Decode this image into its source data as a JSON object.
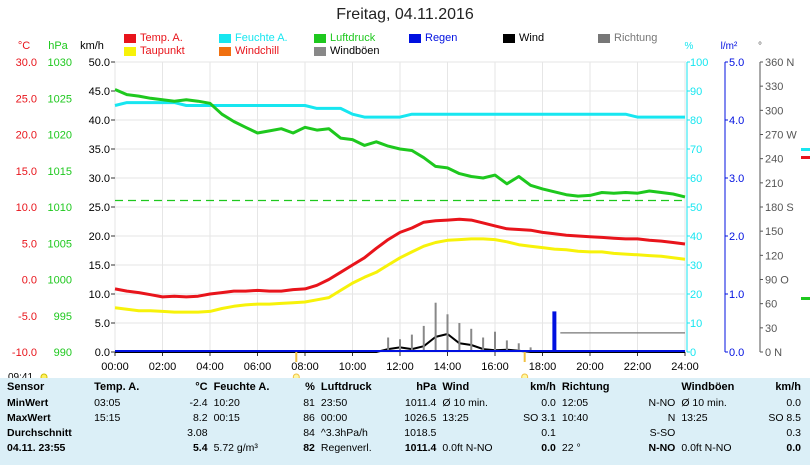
{
  "title": "Freitag, 04.11.2016",
  "time_start": "09:41",
  "legend": [
    {
      "label": "Temp. A.",
      "color": "#e8141b",
      "text_color": "#e8141b"
    },
    {
      "label": "Feuchte A.",
      "color": "#17e6f0",
      "text_color": "#17e6f0"
    },
    {
      "label": "Luftdruck",
      "color": "#1ec81e",
      "text_color": "#1ec81e"
    },
    {
      "label": "Regen",
      "color": "#0010e0",
      "text_color": "#0010e0"
    },
    {
      "label": "Wind",
      "color": "#000000",
      "text_color": "#000000"
    },
    {
      "label": "Richtung",
      "color": "#777777",
      "text_color": "#777777"
    },
    {
      "label": "Taupunkt",
      "color": "#f7f20a",
      "text_color": "#e8141b"
    },
    {
      "label": "Windchill",
      "color": "#f07010",
      "text_color": "#e8141b"
    },
    {
      "label": "Windböen",
      "color": "#888888",
      "text_color": "#000000"
    }
  ],
  "chart_data": {
    "type": "line",
    "x": [
      "00:00",
      "00:30",
      "01:00",
      "01:30",
      "02:00",
      "02:30",
      "03:00",
      "03:30",
      "04:00",
      "04:30",
      "05:00",
      "05:30",
      "06:00",
      "06:30",
      "07:00",
      "07:30",
      "08:00",
      "08:30",
      "09:00",
      "09:30",
      "10:00",
      "10:30",
      "11:00",
      "11:30",
      "12:00",
      "12:30",
      "13:00",
      "13:30",
      "14:00",
      "14:30",
      "15:00",
      "15:30",
      "16:00",
      "16:30",
      "17:00",
      "17:30",
      "18:00",
      "18:30",
      "19:00",
      "19:30",
      "20:00",
      "20:30",
      "21:00",
      "21:30",
      "22:00",
      "22:30",
      "23:00",
      "23:30",
      "24:00"
    ],
    "x_ticks": [
      "00:00",
      "02:00",
      "04:00",
      "06:00",
      "08:00",
      "10:00",
      "12:00",
      "14:00",
      "16:00",
      "18:00",
      "20:00",
      "22:00",
      "24:00"
    ],
    "axes": {
      "temp": {
        "label": "°C",
        "ticks": [
          "30.0",
          "25.0",
          "20.0",
          "15.0",
          "10.0",
          "5.0",
          "0.0",
          "-5.0",
          "-10.0"
        ],
        "range": [
          -10,
          30
        ],
        "color": "#e8141b"
      },
      "pressure": {
        "label": "hPa",
        "ticks": [
          "1030",
          "1025",
          "1020",
          "1015",
          "1010",
          "1005",
          "1000",
          "995",
          "990"
        ],
        "range": [
          990,
          1030
        ],
        "color": "#1ec81e"
      },
      "wind": {
        "label": "km/h",
        "ticks": [
          "50.0",
          "45.0",
          "40.0",
          "35.0",
          "30.0",
          "25.0",
          "20.0",
          "15.0",
          "10.0",
          "5.0",
          "0.0"
        ],
        "range": [
          0,
          50
        ],
        "color": "#000000"
      },
      "humidity": {
        "label": "%",
        "ticks": [
          "100",
          "90",
          "80",
          "70",
          "60",
          "50",
          "40",
          "30",
          "20",
          "10",
          "0"
        ],
        "range": [
          0,
          100
        ],
        "color": "#17e6f0"
      },
      "rain": {
        "label": "l/m²",
        "ticks": [
          "5.0",
          "4.0",
          "3.0",
          "2.0",
          "1.0",
          "0.0"
        ],
        "range": [
          0,
          5
        ],
        "color": "#0010e0"
      },
      "direction": {
        "label": "°",
        "ticks": [
          "360 N",
          "330",
          "300",
          "270 W",
          "240",
          "210",
          "180 S",
          "150",
          "120",
          "90 O",
          "60",
          "30",
          "0 N"
        ],
        "range": [
          0,
          360
        ],
        "color": "#555555"
      }
    },
    "series": [
      {
        "name": "Temp. A.",
        "axis": "temp",
        "color": "#e8141b",
        "values": [
          -1.3,
          -1.6,
          -1.8,
          -2.1,
          -2.4,
          -2.3,
          -2.4,
          -2.3,
          -2.0,
          -1.8,
          -1.6,
          -1.6,
          -1.5,
          -1.6,
          -1.6,
          -1.4,
          -1.3,
          -0.8,
          0.0,
          1.0,
          2.0,
          3.0,
          4.3,
          5.5,
          6.5,
          7.1,
          7.9,
          8.1,
          8.2,
          8.3,
          8.2,
          7.8,
          7.4,
          7.0,
          6.9,
          6.8,
          6.5,
          6.3,
          6.1,
          6.0,
          5.9,
          5.8,
          5.7,
          5.6,
          5.6,
          5.4,
          5.3,
          5.1,
          4.9
        ]
      },
      {
        "name": "Taupunkt",
        "axis": "temp",
        "color": "#f7f20a",
        "values": [
          -3.9,
          -4.1,
          -4.3,
          -4.3,
          -4.4,
          -4.5,
          -4.5,
          -4.5,
          -4.4,
          -4.0,
          -3.7,
          -3.5,
          -3.4,
          -3.4,
          -3.3,
          -3.2,
          -3.1,
          -2.8,
          -2.5,
          -1.5,
          -0.5,
          0.3,
          1.0,
          2.0,
          3.0,
          3.8,
          4.6,
          5.1,
          5.4,
          5.5,
          5.6,
          5.6,
          5.5,
          5.2,
          4.8,
          4.6,
          4.4,
          4.2,
          4.1,
          3.9,
          3.8,
          3.8,
          3.6,
          3.5,
          3.4,
          3.3,
          3.2,
          3.0,
          2.8
        ]
      },
      {
        "name": "Feuchte A.",
        "axis": "humidity",
        "color": "#17e6f0",
        "values": [
          85,
          86,
          86,
          86,
          86,
          86,
          85,
          85,
          85,
          85,
          85,
          85,
          85,
          85,
          85,
          85,
          85,
          84,
          84,
          84,
          82,
          81,
          81,
          81,
          81,
          82,
          82,
          82,
          82,
          82,
          82,
          82,
          82,
          82,
          82,
          82,
          82,
          82,
          82,
          82,
          82,
          82,
          82,
          82,
          81,
          81,
          81,
          81,
          81
        ]
      },
      {
        "name": "Luftdruck",
        "axis": "pressure",
        "color": "#1ec81e",
        "values": [
          1026.2,
          1025.5,
          1025.3,
          1025.0,
          1024.8,
          1024.6,
          1024.8,
          1024.6,
          1024.3,
          1022.8,
          1021.8,
          1021.0,
          1020.2,
          1020.5,
          1020.8,
          1020.2,
          1021.0,
          1020.6,
          1020.8,
          1019.5,
          1019.3,
          1018.5,
          1019.0,
          1018.4,
          1018.0,
          1017.8,
          1016.8,
          1015.6,
          1015.4,
          1014.6,
          1014.2,
          1014.0,
          1014.4,
          1013.2,
          1014.2,
          1013.0,
          1012.5,
          1012.1,
          1011.7,
          1011.5,
          1011.6,
          1012.0,
          1011.9,
          1012.0,
          1011.9,
          1012.2,
          1012.0,
          1011.8,
          1011.4
        ]
      },
      {
        "name": "Wind",
        "axis": "wind",
        "color": "#000000",
        "values": [
          0,
          0,
          0,
          0,
          0,
          0,
          0,
          0,
          0,
          0,
          0,
          0,
          0,
          0,
          0,
          0,
          0,
          0,
          0,
          0,
          0,
          0,
          0,
          0.5,
          0.8,
          0.5,
          1.0,
          2.6,
          3.1,
          1.5,
          1.2,
          0.5,
          0.3,
          0.4,
          0.2,
          0,
          0,
          0,
          0,
          0,
          0,
          0,
          0,
          0,
          0,
          0,
          0,
          0,
          0
        ]
      },
      {
        "name": "Windböen",
        "axis": "wind",
        "color": "#888888",
        "values": [
          0,
          0,
          0,
          0,
          0,
          0,
          0,
          0,
          0,
          0,
          0,
          0,
          0,
          0,
          0,
          0,
          0,
          0,
          0,
          0,
          0,
          0,
          0,
          2.5,
          2.2,
          3.0,
          4.5,
          8.5,
          6.5,
          5.0,
          4.0,
          2.5,
          3.5,
          2.0,
          1.5,
          0.8,
          0,
          0,
          0,
          0,
          0,
          0,
          0,
          0,
          0,
          0,
          0,
          0,
          0
        ]
      },
      {
        "name": "Regen",
        "axis": "rain",
        "color": "#0010e0",
        "values": [
          0,
          0,
          0,
          0,
          0,
          0,
          0,
          0,
          0,
          0,
          0,
          0,
          0,
          0,
          0,
          0,
          0,
          0,
          0,
          0,
          0,
          0,
          0,
          0,
          0,
          0,
          0,
          0,
          0,
          0,
          0,
          0,
          0,
          0,
          0,
          0,
          0,
          0.7,
          0,
          0,
          0,
          0,
          0,
          0,
          0,
          0,
          0,
          0,
          0
        ]
      }
    ],
    "reference_lines": [
      {
        "axis": "temp",
        "value": 10.9,
        "color": "#1ec81e",
        "style": "dashed"
      },
      {
        "axis": "wind",
        "value": 3.3,
        "color": "#777777",
        "style": "solid",
        "from": "18:45",
        "to": "24:00"
      }
    ]
  },
  "summary": {
    "headers": [
      "Sensor",
      "Temp. A.",
      "°C",
      "Feuchte A.",
      "%",
      "Luftdruck",
      "hPa",
      "Wind",
      "km/h",
      "Richtung",
      "",
      "Windböen",
      "km/h"
    ],
    "rows": [
      {
        "label": "MinWert",
        "cells": [
          "03:05",
          "-2.4",
          "10:20",
          "81",
          "23:50",
          "1011.4",
          "Ø 10 min.",
          "0.0",
          "12:05",
          "N-NO",
          "Ø 10 min.",
          "0.0"
        ]
      },
      {
        "label": "MaxWert",
        "cells": [
          "15:15",
          "8.2",
          "00:15",
          "86",
          "00:00",
          "1026.5",
          "13:25",
          "SO 3.1",
          "10:40",
          "N",
          "13:25",
          "SO 8.5"
        ]
      },
      {
        "label": "Durchschnitt",
        "cells": [
          "",
          "3.08",
          "",
          "84",
          "^3.3hPa/h",
          "1018.5",
          "",
          "0.1",
          "",
          "S-SO",
          "",
          "0.3"
        ]
      },
      {
        "label": "04.11. 23:55",
        "cells": [
          "",
          "5.4",
          "5.72 g/m³",
          "82",
          "Regenverl.",
          "1011.4",
          "0.0ft N-NO",
          "0.0",
          "22 °",
          "N-NO",
          "0.0ft N-NO",
          "0.0"
        ]
      }
    ]
  }
}
